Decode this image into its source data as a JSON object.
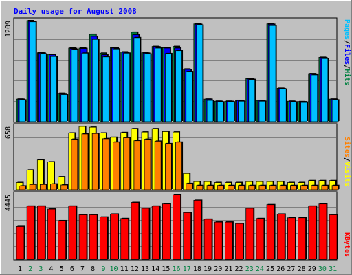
{
  "chart_data": {
    "type": "bar",
    "title": "Daily usage for August 2008",
    "categories": [
      "1",
      "2",
      "3",
      "4",
      "5",
      "6",
      "7",
      "8",
      "9",
      "10",
      "11",
      "12",
      "13",
      "14",
      "15",
      "16",
      "17",
      "18",
      "19",
      "20",
      "21",
      "22",
      "23",
      "24",
      "25",
      "26",
      "27",
      "28",
      "29",
      "30",
      "31"
    ],
    "weekend_days": [
      "2",
      "3",
      "9",
      "10",
      "16",
      "17",
      "23",
      "24",
      "30",
      "31"
    ],
    "panels": [
      {
        "id": "hits-files-pages",
        "max_label": "1209",
        "ylim": [
          0,
          1209
        ],
        "legend": [
          "Pages",
          "Files",
          "Hits"
        ],
        "series": [
          {
            "name": "Hits",
            "color": "#008040",
            "values": [
              270,
              1209,
              825,
              805,
              340,
              880,
              880,
              1045,
              820,
              885,
              835,
              1070,
              825,
              900,
              885,
              900,
              630,
              1170,
              270,
              245,
              245,
              255,
              515,
              255,
              1170,
              400,
              245,
              240,
              575,
              770,
              270
            ]
          },
          {
            "name": "Files",
            "color": "#0000ff",
            "values": [
              268,
              1200,
              820,
              800,
              335,
              875,
              875,
              1020,
              800,
              880,
              830,
              1040,
              820,
              895,
              880,
              880,
              625,
              1165,
              268,
              243,
              243,
              253,
              510,
              253,
              1165,
              395,
              243,
              238,
              570,
              765,
              268
            ]
          },
          {
            "name": "Pages",
            "color": "#00c0ff",
            "values": [
              260,
              1195,
              810,
              780,
              325,
              865,
              820,
              985,
              775,
              870,
              820,
              1005,
              810,
              880,
              815,
              850,
              600,
              1155,
              255,
              235,
              235,
              245,
              505,
              245,
              1150,
              390,
              235,
              230,
              560,
              755,
              260
            ]
          }
        ]
      },
      {
        "id": "visits-sites",
        "max_label": "658",
        "ylim": [
          0,
          658
        ],
        "legend": [
          "Sites",
          "Visits"
        ],
        "series": [
          {
            "name": "Visits",
            "color": "#ffff00",
            "values": [
              75,
              205,
              310,
              290,
              135,
              590,
              658,
              650,
              590,
              545,
              595,
              635,
              600,
              635,
              605,
              600,
              170,
              85,
              85,
              75,
              75,
              75,
              85,
              85,
              85,
              85,
              75,
              75,
              95,
              95,
              95
            ]
          },
          {
            "name": "Sites",
            "color": "#ff8000",
            "values": [
              40,
              55,
              55,
              60,
              50,
              525,
              580,
              585,
              530,
              495,
              540,
              510,
              525,
              505,
              480,
              495,
              65,
              45,
              45,
              45,
              45,
              45,
              45,
              45,
              45,
              45,
              45,
              45,
              45,
              45,
              45
            ]
          }
        ]
      },
      {
        "id": "kbytes",
        "max_label": "4445",
        "ylim": [
          0,
          4445
        ],
        "legend": [
          "KBytes"
        ],
        "series": [
          {
            "name": "KBytes",
            "color": "#ff0000",
            "values": [
              2250,
              3650,
              3650,
              3450,
              2650,
              3650,
              3050,
              3050,
              2900,
              3100,
              2800,
              3900,
              3500,
              3650,
              3800,
              4445,
              3200,
              4050,
              2750,
              2550,
              2550,
              2450,
              3500,
              2800,
              3750,
              3100,
              2850,
              2850,
              3650,
              3800,
              3050
            ]
          }
        ]
      }
    ]
  }
}
